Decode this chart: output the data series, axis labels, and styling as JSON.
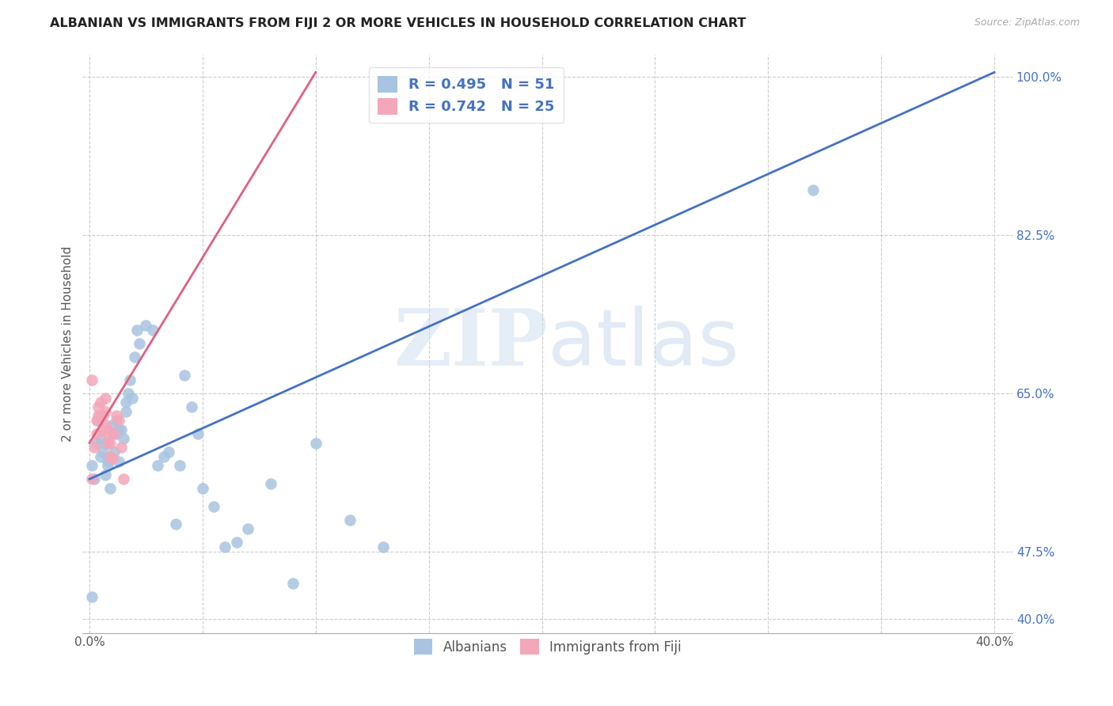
{
  "title": "ALBANIAN VS IMMIGRANTS FROM FIJI 2 OR MORE VEHICLES IN HOUSEHOLD CORRELATION CHART",
  "source": "Source: ZipAtlas.com",
  "ylabel": "2 or more Vehicles in Household",
  "albanians_R": 0.495,
  "albanians_N": 51,
  "fiji_R": 0.742,
  "fiji_N": 25,
  "albanians_color": "#a8c4e0",
  "fiji_color": "#f4a7b9",
  "blue_line_color": "#4472c4",
  "pink_line_color": "#e06080",
  "watermark_zip": "ZIP",
  "watermark_atlas": "atlas",
  "xlim_min": -0.003,
  "xlim_max": 0.408,
  "ylim_min": 0.385,
  "ylim_max": 1.025,
  "x_tick_positions": [
    0.0,
    0.05,
    0.1,
    0.15,
    0.2,
    0.25,
    0.3,
    0.35,
    0.4
  ],
  "x_tick_labels": [
    "0.0%",
    "",
    "",
    "",
    "",
    "",
    "",
    "",
    "40.0%"
  ],
  "y_tick_positions": [
    0.4,
    0.475,
    0.65,
    0.825,
    1.0
  ],
  "y_tick_labels": [
    "40.0%",
    "47.5%",
    "65.0%",
    "82.5%",
    "100.0%"
  ],
  "blue_line_x0": 0.0,
  "blue_line_y0": 0.555,
  "blue_line_x1": 0.4,
  "blue_line_y1": 1.005,
  "pink_line_x0": 0.0,
  "pink_line_y0": 0.595,
  "pink_line_x1": 0.1,
  "pink_line_y1": 1.005,
  "albanians_x": [
    0.001,
    0.002,
    0.003,
    0.004,
    0.005,
    0.005,
    0.006,
    0.007,
    0.007,
    0.008,
    0.008,
    0.009,
    0.01,
    0.01,
    0.011,
    0.012,
    0.012,
    0.013,
    0.013,
    0.014,
    0.015,
    0.016,
    0.016,
    0.017,
    0.018,
    0.019,
    0.02,
    0.021,
    0.022,
    0.025,
    0.028,
    0.03,
    0.033,
    0.035,
    0.038,
    0.04,
    0.042,
    0.045,
    0.048,
    0.05,
    0.055,
    0.06,
    0.065,
    0.07,
    0.08,
    0.09,
    0.1,
    0.115,
    0.13,
    0.32,
    0.001
  ],
  "albanians_y": [
    0.57,
    0.555,
    0.595,
    0.62,
    0.6,
    0.58,
    0.585,
    0.595,
    0.56,
    0.57,
    0.575,
    0.545,
    0.605,
    0.615,
    0.585,
    0.605,
    0.62,
    0.61,
    0.575,
    0.61,
    0.6,
    0.64,
    0.63,
    0.65,
    0.665,
    0.645,
    0.69,
    0.72,
    0.705,
    0.725,
    0.72,
    0.57,
    0.58,
    0.585,
    0.505,
    0.57,
    0.67,
    0.635,
    0.605,
    0.545,
    0.525,
    0.48,
    0.485,
    0.5,
    0.55,
    0.44,
    0.595,
    0.51,
    0.48,
    0.875,
    0.425
  ],
  "fiji_x": [
    0.001,
    0.002,
    0.003,
    0.003,
    0.004,
    0.004,
    0.005,
    0.005,
    0.006,
    0.006,
    0.007,
    0.007,
    0.007,
    0.008,
    0.008,
    0.008,
    0.009,
    0.009,
    0.01,
    0.011,
    0.012,
    0.013,
    0.014,
    0.015,
    0.001
  ],
  "fiji_y": [
    0.665,
    0.59,
    0.605,
    0.62,
    0.625,
    0.635,
    0.64,
    0.625,
    0.625,
    0.61,
    0.615,
    0.63,
    0.645,
    0.61,
    0.605,
    0.595,
    0.595,
    0.58,
    0.578,
    0.605,
    0.625,
    0.62,
    0.59,
    0.555,
    0.555
  ]
}
